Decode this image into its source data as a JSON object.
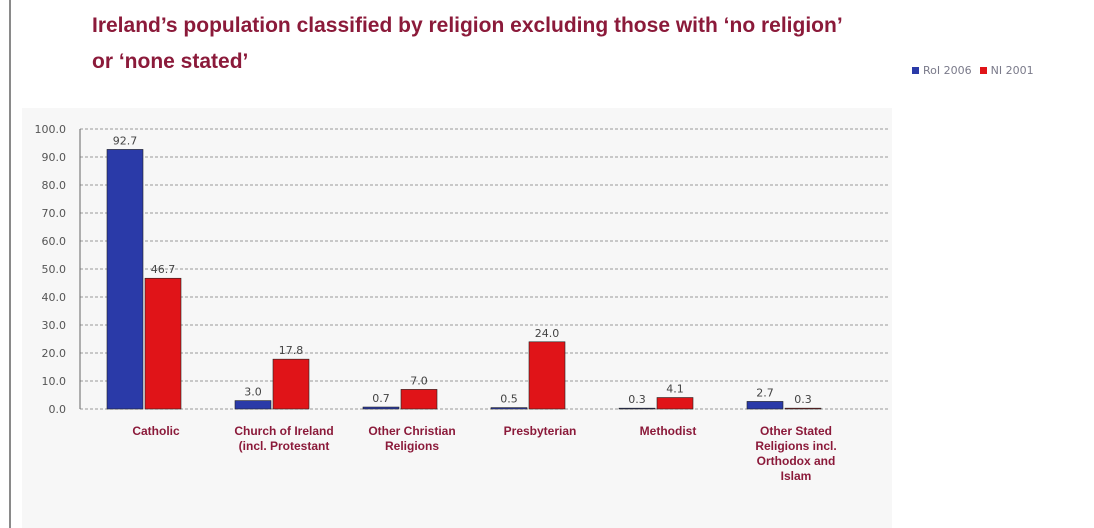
{
  "chart_data": {
    "type": "bar",
    "title": "Ireland’s population classified by religion excluding those with ‘no religion’ or ‘none stated’",
    "categories": [
      "Catholic",
      "Church of Ireland (incl. Protestant",
      "Other Christian Religions",
      "Presbyterian",
      "Methodist",
      "Other Stated Religions incl. Orthodox and Islam"
    ],
    "series": [
      {
        "name": "RoI 2006",
        "values": [
          92.7,
          3.0,
          0.7,
          0.5,
          0.3,
          2.7
        ],
        "labels": [
          "92.7",
          "3.0",
          "0.7",
          "0.5",
          "0.3",
          "2.7"
        ],
        "color": "#2a3aa8"
      },
      {
        "name": "NI 2001",
        "values": [
          46.7,
          17.8,
          7.0,
          24.0,
          4.1,
          0.3
        ],
        "labels": [
          "46.7",
          "17.8",
          "7.0",
          "24.0",
          "4.1",
          "0.3"
        ],
        "color": "#e01418"
      }
    ],
    "ylim": [
      0,
      100
    ],
    "yticks": [
      "0.0",
      "10.0",
      "20.0",
      "30.0",
      "40.0",
      "50.0",
      "60.0",
      "70.0",
      "80.0",
      "90.0",
      "100.0"
    ],
    "grid": "dashed horizontal",
    "legend": "top-right"
  }
}
